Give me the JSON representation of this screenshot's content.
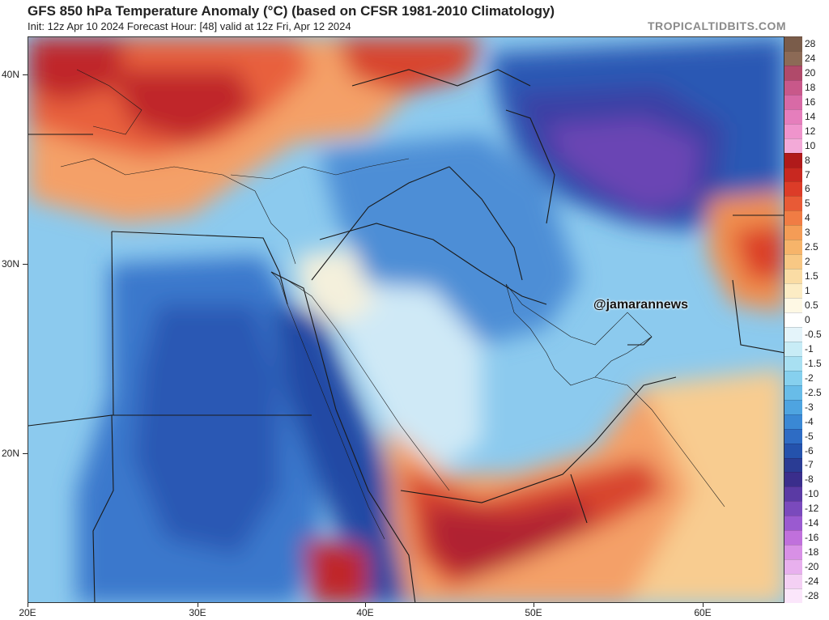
{
  "header": {
    "title": "GFS 850 hPa Temperature Anomaly (°C) (based on CFSR 1981-2010 Climatology)",
    "subtitle": "Init: 12z Apr 10 2024   Forecast Hour: [48]   valid at 12z Fri, Apr 12 2024",
    "brand": "TROPICALTIDBITS.COM"
  },
  "map": {
    "watermark": "@jamarannews",
    "lat_labels": [
      "40N",
      "30N",
      "20N"
    ],
    "lon_labels": [
      "20E",
      "30E",
      "40E",
      "50E",
      "60E"
    ]
  },
  "colorbar": {
    "labels": [
      "28",
      "24",
      "20",
      "18",
      "16",
      "14",
      "12",
      "10",
      "8",
      "7",
      "6",
      "5",
      "4",
      "3",
      "2.5",
      "2",
      "1.5",
      "1",
      "0.5",
      "0",
      "-0.5",
      "-1",
      "-1.5",
      "-2",
      "-2.5",
      "-3",
      "-4",
      "-5",
      "-6",
      "-7",
      "-8",
      "-10",
      "-12",
      "-14",
      "-16",
      "-18",
      "-20",
      "-24",
      "-28"
    ],
    "colors": [
      "#7a5c4a",
      "#8c6a56",
      "#b04a6a",
      "#c8588a",
      "#d86aa6",
      "#e57ebc",
      "#ef94cc",
      "#f3aad8",
      "#b01a1a",
      "#c82820",
      "#dc3c28",
      "#e85a36",
      "#f07c44",
      "#f49c56",
      "#f6b46a",
      "#f8c884",
      "#fadca4",
      "#fcecc4",
      "#fef8e4",
      "#ffffff",
      "#e4f4fa",
      "#c8ecf6",
      "#a8e0f2",
      "#86d0ee",
      "#68bce8",
      "#4ea4e0",
      "#3a88d4",
      "#2e6cc4",
      "#2452ac",
      "#2a3c94",
      "#3a2e8c",
      "#5a3aa4",
      "#7a4abc",
      "#9a5ad0",
      "#c070dc",
      "#d890e6",
      "#e8b0ee",
      "#f4d0f4",
      "#fbe6fb"
    ]
  },
  "colors": {
    "warm_strong": "#c0282a",
    "warm_light": "#f4a068",
    "cold_strong": "#2c58b4",
    "cold_light": "#8cc8ec",
    "purple": "#6a44b4"
  }
}
